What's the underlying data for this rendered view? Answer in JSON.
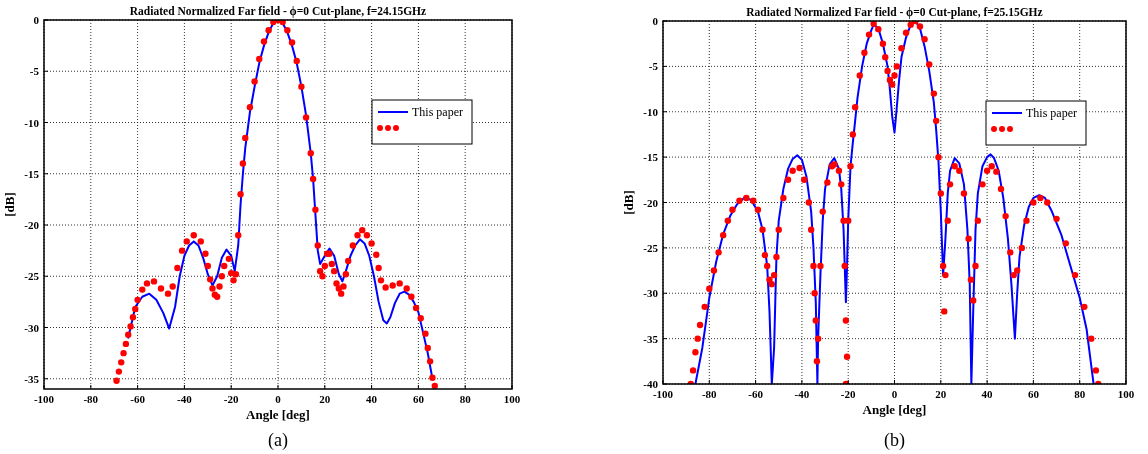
{
  "chart_data": [
    {
      "type": "line",
      "title": "Radiated Normalized Far field - ϕ=0 Cut-plane, f=24.15GHz",
      "xlabel": "Angle [deg]",
      "ylabel": "[dB]",
      "annotations": [
        "(a)"
      ],
      "xlim": [
        -100,
        100
      ],
      "xticks": [
        -100,
        -80,
        -60,
        -40,
        -20,
        0,
        20,
        40,
        60,
        80,
        100
      ],
      "ylim": [
        -36,
        0
      ],
      "yticks": [
        0,
        -5,
        -10,
        -15,
        -20,
        -25,
        -30,
        -35
      ],
      "grid": true,
      "legend": "top right",
      "series": [
        {
          "name": "This paper",
          "type": "line",
          "color": "#0000ff",
          "line_style": "solid",
          "x": [
            -64,
            -61,
            -58,
            -55,
            -52,
            -49,
            -46.5,
            -44,
            -42,
            -40,
            -38,
            -36,
            -34,
            -32,
            -30,
            -28,
            -26,
            -24,
            -22,
            -20,
            -18.5,
            -17,
            -16,
            -15,
            -14,
            -12,
            -10,
            -8,
            -6,
            -4,
            -2,
            0,
            2,
            4,
            6,
            8,
            10,
            12,
            14,
            15,
            16,
            17,
            18,
            20,
            22,
            24,
            26,
            27.5,
            29,
            31,
            33,
            35,
            37,
            39,
            41,
            43,
            45,
            46.5,
            48,
            50,
            52,
            54,
            56,
            58,
            60,
            62,
            64,
            66
          ],
          "values": [
            -31,
            -28,
            -27,
            -26.7,
            -27.3,
            -28.6,
            -30.1,
            -28,
            -25,
            -23,
            -22,
            -21.6,
            -22,
            -23.2,
            -24.8,
            -25.9,
            -25,
            -23.2,
            -22.4,
            -23,
            -24.5,
            -22,
            -18,
            -15,
            -12.5,
            -9,
            -6.5,
            -4.2,
            -2.5,
            -1.2,
            -0.3,
            0,
            -0.3,
            -1.2,
            -2.5,
            -4.2,
            -6.5,
            -9.3,
            -13,
            -15.5,
            -19,
            -22.5,
            -23.8,
            -23,
            -22.3,
            -23,
            -24.8,
            -25.5,
            -24.5,
            -23,
            -22,
            -21.4,
            -21.8,
            -23,
            -25,
            -27.5,
            -29.3,
            -29.6,
            -29,
            -27.6,
            -26.7,
            -26.5,
            -26.8,
            -27.5,
            -28.5,
            -30.5,
            -32.5,
            -35
          ]
        },
        {
          "type": "scatter",
          "marker": "circle",
          "color": "#ff0000",
          "x": [
            -69,
            -68,
            -67,
            -66,
            -65,
            -64,
            -63,
            -62,
            -61,
            -60,
            -58,
            -56,
            -53,
            -50,
            -47,
            -45,
            -43,
            -41,
            -39,
            -36,
            -33,
            -31,
            -30,
            -29,
            -28,
            -27,
            -26,
            -25,
            -24,
            -23,
            -21,
            -20,
            -19,
            -18,
            -17,
            -16,
            -15,
            -14,
            -12,
            -10,
            -8,
            -6,
            -4,
            -2,
            0,
            2,
            4,
            6,
            8,
            10,
            12,
            14,
            15,
            16,
            17,
            18,
            19,
            20,
            21,
            22,
            23,
            24,
            25,
            26,
            27,
            28,
            29,
            30,
            32,
            34,
            36,
            38,
            40,
            42,
            43,
            44,
            46,
            49,
            52,
            55,
            57,
            59,
            61,
            63,
            64,
            65,
            66,
            67
          ],
          "values": [
            -35.2,
            -34.3,
            -33.4,
            -32.5,
            -31.6,
            -30.7,
            -29.9,
            -29,
            -28.2,
            -27.3,
            -26.3,
            -25.7,
            -25.5,
            -26.2,
            -26.7,
            -26,
            -24.2,
            -22.5,
            -21.6,
            -21,
            -21.6,
            -22.8,
            -24,
            -25.3,
            -26.2,
            -26.8,
            -27,
            -26,
            -25,
            -24,
            -23.3,
            -24.7,
            -25.4,
            -24.8,
            -21,
            -17,
            -14,
            -11.5,
            -8.5,
            -6,
            -3.8,
            -2.1,
            -1,
            -0.2,
            0,
            -0.2,
            -1,
            -2.2,
            -4,
            -6.5,
            -9.5,
            -13,
            -15.5,
            -18.5,
            -22,
            -24.5,
            -25,
            -24,
            -22.8,
            -22.8,
            -23.8,
            -24.5,
            -25.7,
            -26.2,
            -26.7,
            -26,
            -24.8,
            -23.5,
            -22,
            -21,
            -20.5,
            -21,
            -21.8,
            -22.9,
            -24.2,
            -25.4,
            -26.1,
            -25.9,
            -25.7,
            -26.2,
            -27,
            -28.1,
            -29.1,
            -30.6,
            -32,
            -33.3,
            -34.9,
            -35.7
          ]
        }
      ]
    },
    {
      "type": "line",
      "title": "Radiated Normalized Far field - ϕ=0 Cut-plane, f=25.15GHz",
      "xlabel": "Angle [deg]",
      "ylabel": "[dB]",
      "annotations": [
        "(b)"
      ],
      "xlim": [
        -100,
        100
      ],
      "xticks": [
        -100,
        -80,
        -60,
        -40,
        -20,
        0,
        20,
        40,
        60,
        80,
        100
      ],
      "ylim": [
        -40,
        0
      ],
      "yticks": [
        0,
        -5,
        -10,
        -15,
        -20,
        -25,
        -30,
        -35,
        -40
      ],
      "grid": true,
      "legend": "top right",
      "series": [
        {
          "name": "This paper",
          "type": "line",
          "color": "#0000ff",
          "line_style": "solid",
          "x": [
            -86,
            -83,
            -80,
            -77,
            -74,
            -71,
            -68,
            -65,
            -62,
            -59,
            -57,
            -55,
            -54,
            -53,
            -52,
            -51,
            -50,
            -48,
            -46,
            -44,
            -42,
            -40,
            -38,
            -36,
            -35,
            -34,
            -33.3,
            -33,
            -32,
            -31,
            -30,
            -28,
            -26,
            -24,
            -23,
            -22,
            -21,
            -20.5,
            -20,
            -19,
            -18,
            -17,
            -16,
            -14,
            -12,
            -10,
            -9,
            -7,
            -5,
            -3,
            -2,
            -1,
            0,
            1,
            2,
            3,
            5,
            7,
            9,
            11,
            13,
            15,
            17,
            18,
            19,
            20,
            21,
            22,
            23,
            24,
            26,
            28,
            30,
            31.5,
            32.5,
            33.2,
            34,
            35,
            36,
            38,
            40,
            41.5,
            43,
            45,
            47,
            49,
            50.5,
            52,
            53,
            54,
            56,
            58,
            60,
            62.5,
            65,
            68,
            72,
            76,
            80,
            83,
            86
          ],
          "values": [
            -40,
            -36,
            -30.5,
            -26.5,
            -23.5,
            -21.5,
            -20.2,
            -19.5,
            -19.7,
            -21,
            -23,
            -27,
            -32,
            -40,
            -36,
            -26,
            -22,
            -18.5,
            -16.3,
            -15.2,
            -14.8,
            -15.3,
            -17.2,
            -21,
            -25,
            -31,
            -40,
            -35,
            -28,
            -22,
            -18.5,
            -15.8,
            -15.1,
            -16.3,
            -18.5,
            -23,
            -31,
            -27,
            -22,
            -16,
            -13.4,
            -11,
            -8.5,
            -5,
            -2.5,
            -1,
            -0.4,
            -0.8,
            -2.5,
            -5,
            -7.5,
            -10.5,
            -12.3,
            -9.5,
            -6.5,
            -4,
            -1.8,
            -0.4,
            0,
            -0.8,
            -2.8,
            -5.5,
            -9,
            -12,
            -15.5,
            -21,
            -28,
            -24,
            -19,
            -16.5,
            -15.1,
            -15.7,
            -18,
            -23,
            -29,
            -40,
            -32,
            -23,
            -19,
            -16,
            -15,
            -14.7,
            -15.1,
            -16.5,
            -19.5,
            -24,
            -29,
            -35,
            -30,
            -26,
            -22.5,
            -20.5,
            -19.5,
            -19.2,
            -19.5,
            -21,
            -23.5,
            -27,
            -30.5,
            -34,
            -40
          ]
        },
        {
          "type": "scatter",
          "marker": "circle",
          "color": "#ff0000",
          "x": [
            -88,
            -87,
            -86,
            -85,
            -84,
            -82,
            -80,
            -78,
            -76,
            -74,
            -72,
            -70,
            -67,
            -64,
            -61,
            -59,
            -57,
            -56,
            -55,
            -54,
            -53,
            -52,
            -51,
            -50,
            -48,
            -46,
            -44,
            -41,
            -39,
            -37,
            -36,
            -35,
            -34.5,
            -34,
            -33.5,
            -33,
            -32,
            -31,
            -29,
            -27,
            -26,
            -24,
            -23,
            -22,
            -21.5,
            -21,
            -21,
            -20.5,
            -20,
            -19,
            -18,
            -17,
            -15,
            -13,
            -11,
            -9,
            -7,
            -5,
            -4,
            -3,
            -2,
            -1,
            0,
            1,
            3,
            5,
            7,
            9,
            11,
            13,
            15,
            17,
            18,
            19,
            20,
            21,
            21.5,
            22,
            23,
            24,
            26,
            28,
            30,
            32,
            33,
            34,
            35,
            36,
            38,
            40,
            42,
            44,
            46,
            48,
            50,
            51.5,
            53,
            55,
            57,
            60,
            63,
            66,
            70,
            74,
            78,
            82,
            85,
            87,
            88
          ],
          "values": [
            -40,
            -38.5,
            -36.5,
            -35,
            -33.5,
            -31.5,
            -29.5,
            -27.5,
            -25.5,
            -23.6,
            -22,
            -20.8,
            -19.8,
            -19.5,
            -19.8,
            -20.8,
            -23,
            -25.8,
            -27,
            -28.5,
            -29,
            -28,
            -26,
            -23,
            -19.5,
            -17.5,
            -16.5,
            -16.2,
            -17.5,
            -20,
            -23,
            -27,
            -30,
            -33,
            -37.5,
            -35,
            -27,
            -21,
            -17.8,
            -16,
            -15.8,
            -16.5,
            -18,
            -22,
            -27,
            -33,
            -40,
            -37,
            -22,
            -16,
            -12.5,
            -9.5,
            -6,
            -3.5,
            -1.5,
            -0.3,
            -0.9,
            -2.5,
            -4,
            -5.5,
            -6.5,
            -7,
            -6,
            -5,
            -3,
            -1.3,
            -0.4,
            0,
            -0.6,
            -2,
            -4.8,
            -8,
            -11,
            -15,
            -19,
            -27,
            -32,
            -28,
            -22,
            -18,
            -16,
            -16.5,
            -19,
            -24,
            -28.5,
            -30.8,
            -27,
            -22,
            -18,
            -16.5,
            -16,
            -16.6,
            -18.5,
            -21.5,
            -25.5,
            -28,
            -27.5,
            -25,
            -22,
            -20,
            -19.5,
            -20,
            -21.8,
            -24.5,
            -28,
            -31.5,
            -35,
            -38.5,
            -40
          ]
        }
      ]
    }
  ]
}
